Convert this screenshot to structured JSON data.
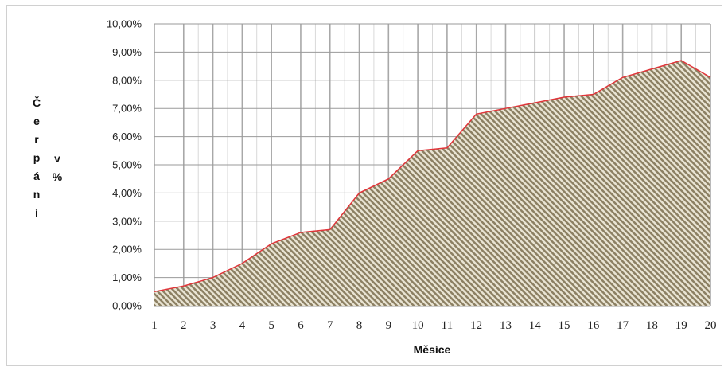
{
  "chart_data": {
    "type": "area",
    "x": [
      1,
      2,
      3,
      4,
      5,
      6,
      7,
      8,
      9,
      10,
      11,
      12,
      13,
      14,
      15,
      16,
      17,
      18,
      19,
      20
    ],
    "values": [
      0.5,
      0.7,
      1.0,
      1.5,
      2.2,
      2.6,
      2.7,
      4.0,
      4.5,
      5.5,
      5.6,
      6.8,
      7.0,
      7.2,
      7.4,
      7.5,
      8.1,
      8.4,
      8.7,
      8.1
    ],
    "ylim": [
      0,
      10
    ],
    "y_ticks": [
      "0,00%",
      "1,00%",
      "2,00%",
      "3,00%",
      "4,00%",
      "5,00%",
      "6,00%",
      "7,00%",
      "8,00%",
      "9,00%",
      "10,00%"
    ],
    "x_ticks": [
      "1",
      "2",
      "3",
      "4",
      "5",
      "6",
      "7",
      "8",
      "9",
      "10",
      "11",
      "12",
      "13",
      "14",
      "15",
      "16",
      "17",
      "18",
      "19",
      "20"
    ],
    "xlabel": "Měsíce",
    "ylabel_letters": [
      "Č",
      "e",
      "r",
      "p",
      "á",
      "n",
      "í"
    ],
    "ylabel_suffix": [
      "v",
      "%"
    ],
    "grid": true,
    "colors": {
      "line": "#e0353a",
      "fill_a": "#8c8063",
      "fill_b": "#e9e4d3",
      "grid": "#a8a8a8"
    }
  }
}
